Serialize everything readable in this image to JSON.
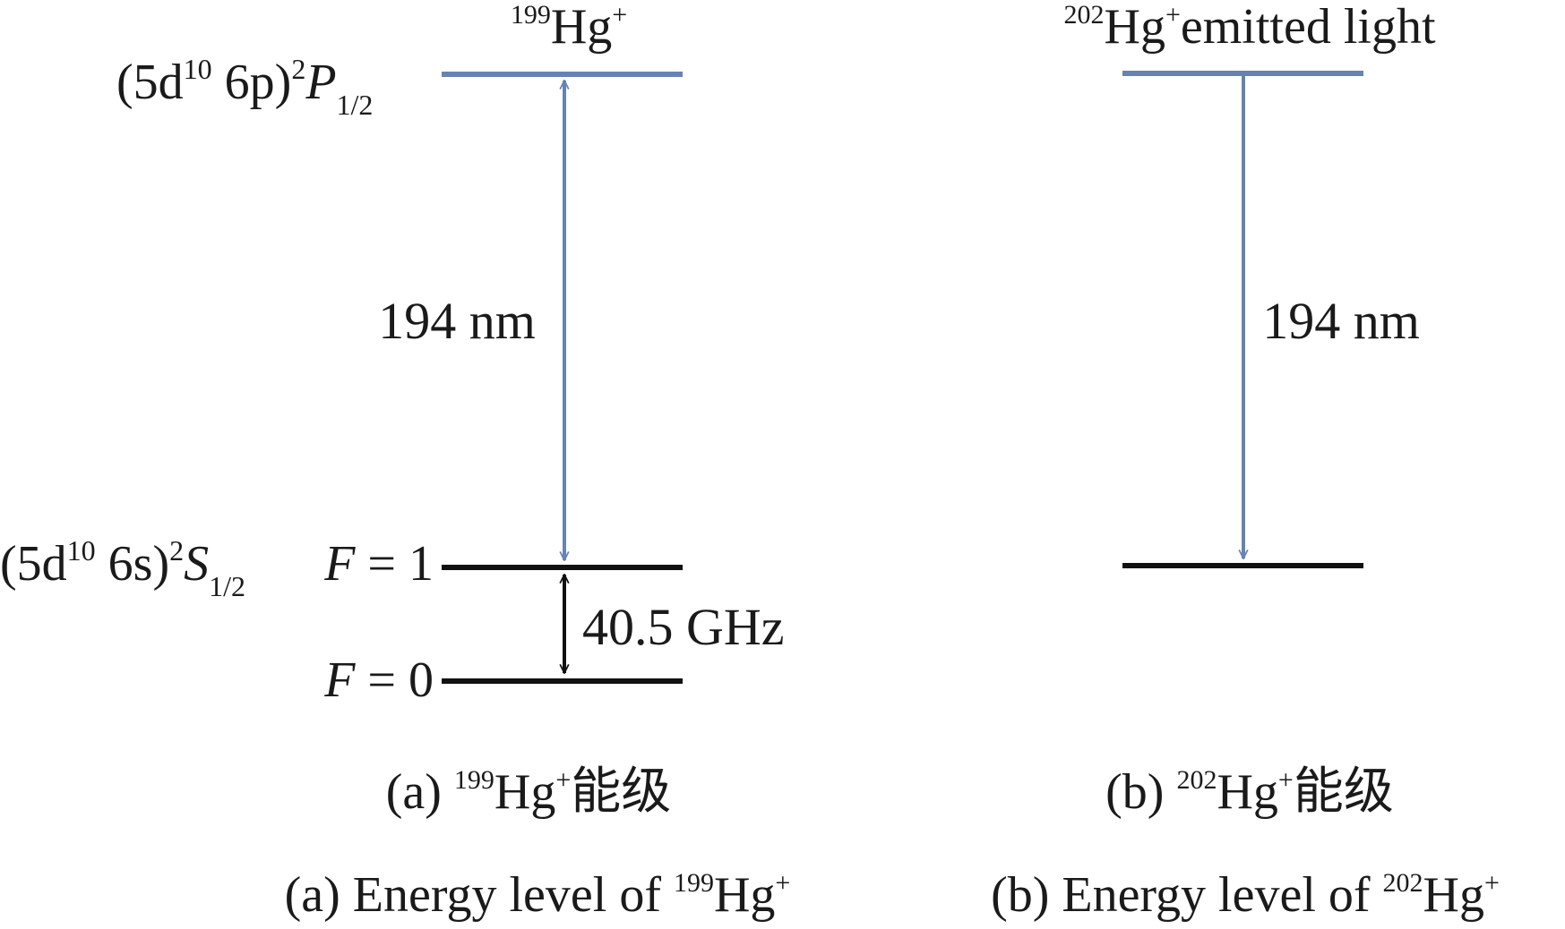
{
  "colors": {
    "upper_level": "#6783B4",
    "ground_level": "#111111",
    "arrow_194": "#6783B4",
    "arrow_hfs": "#111111",
    "text": "#1a1a1a"
  },
  "panel_a": {
    "title_mass": "199",
    "title_elem": "Hg",
    "title_charge": "+",
    "upper_state": {
      "open": "(5d",
      "d_exp": "10",
      "mid": " 6p)",
      "mult": "2",
      "term": "P",
      "sub": "1/2"
    },
    "ground_state": {
      "open": "(5d",
      "d_exp": "10",
      "mid": " 6s)",
      "mult": "2",
      "term": "S",
      "sub": "1/2"
    },
    "f1_var": "F",
    "f1_eq": " = 1",
    "f0_var": "F",
    "f0_eq": " = 0",
    "wavelength_label": "194 nm",
    "hyperfine_label": "40.5 GHz",
    "caption_cn_prefix": "(a) ",
    "caption_cn_mass": "199",
    "caption_cn_elem": "Hg",
    "caption_cn_charge": "+",
    "caption_cn_suffix": "能级",
    "caption_en_prefix": "(a) Energy level of ",
    "caption_en_mass": "199",
    "caption_en_elem": "Hg",
    "caption_en_charge": "+"
  },
  "panel_b": {
    "title_mass": "202",
    "title_elem": "Hg",
    "title_charge": "+",
    "title_rest": "emitted light",
    "wavelength_label": "194 nm",
    "caption_cn_prefix": "(b) ",
    "caption_cn_mass": "202",
    "caption_cn_elem": "Hg",
    "caption_cn_charge": "+",
    "caption_cn_suffix": "能级",
    "caption_en_prefix": "(b) Energy level of ",
    "caption_en_mass": "202",
    "caption_en_elem": "Hg",
    "caption_en_charge": "+"
  }
}
